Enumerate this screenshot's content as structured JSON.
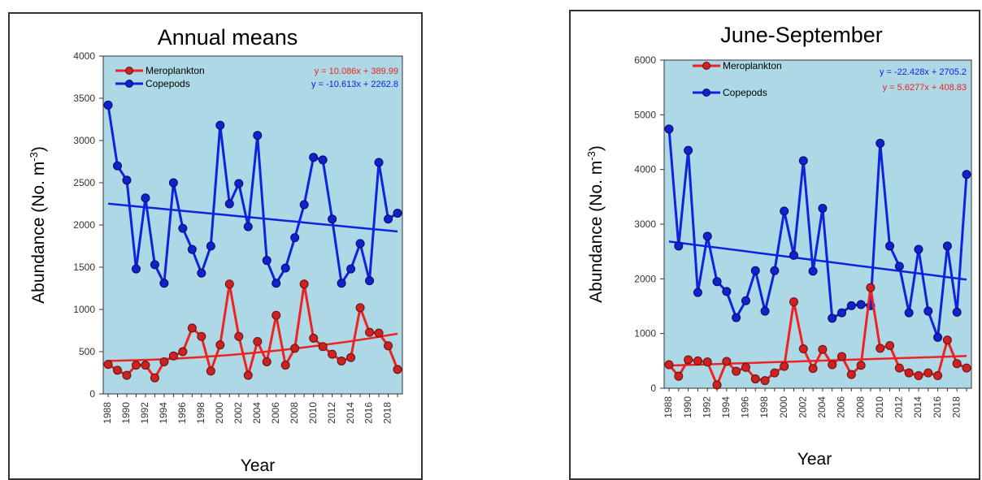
{
  "chart_data": [
    {
      "type": "line",
      "title": "Annual means",
      "xlabel": "Year",
      "ylabel": "Abundance (No. m-3)",
      "ylabel_main": "Abundance (No. m",
      "ylabel_sup": "-3",
      "ylabel_close": ")",
      "xlim": [
        1988,
        2019
      ],
      "ylim": [
        0,
        4000
      ],
      "yticks": [
        0,
        500,
        1000,
        1500,
        2000,
        2500,
        3000,
        3500,
        4000
      ],
      "xticks": [
        1988,
        1990,
        1992,
        1994,
        1996,
        1998,
        2000,
        2002,
        2004,
        2006,
        2008,
        2010,
        2012,
        2014,
        2016,
        2018
      ],
      "x": [
        1988,
        1989,
        1990,
        1991,
        1992,
        1993,
        1994,
        1995,
        1996,
        1997,
        1998,
        1999,
        2000,
        2001,
        2002,
        2003,
        2004,
        2005,
        2006,
        2007,
        2008,
        2009,
        2010,
        2011,
        2012,
        2013,
        2014,
        2015,
        2016,
        2017,
        2018,
        2019
      ],
      "legend": "top-left",
      "grid": false,
      "background": "#add8e6",
      "series": [
        {
          "name": "Meroplankton",
          "color": "#ee2222",
          "values": [
            350,
            280,
            220,
            340,
            340,
            190,
            380,
            450,
            500,
            780,
            680,
            270,
            580,
            1300,
            680,
            220,
            620,
            380,
            930,
            340,
            540,
            1300,
            660,
            560,
            470,
            390,
            430,
            1020,
            730,
            720,
            570,
            290
          ],
          "trend_label": "y = 10.086x + 389.99",
          "trend": {
            "slope": 10.086,
            "intercept": 389.99,
            "curve": 0.28
          }
        },
        {
          "name": "Copepods",
          "color": "#1122dd",
          "values": [
            3420,
            2700,
            2530,
            1480,
            2320,
            1530,
            1310,
            2500,
            1960,
            1710,
            1430,
            1750,
            3180,
            2250,
            2490,
            1980,
            3060,
            1580,
            1310,
            1490,
            1850,
            2240,
            2800,
            2770,
            2070,
            1310,
            1480,
            1780,
            1340,
            2740,
            2070,
            2140
          ],
          "trend_label": "y = -10.613x + 2262.8",
          "trend": {
            "slope": -10.613,
            "intercept": 2262.8,
            "curve": 0
          }
        }
      ]
    },
    {
      "type": "line",
      "title": "June-September",
      "xlabel": "Year",
      "ylabel": "Abundance (No. m-3)",
      "ylabel_main": "Abundance (No. m",
      "ylabel_sup": "-3",
      "ylabel_close": ")",
      "xlim": [
        1988,
        2019
      ],
      "ylim": [
        0,
        6000
      ],
      "yticks": [
        0,
        1000,
        2000,
        3000,
        4000,
        5000,
        6000
      ],
      "xticks": [
        1988,
        1990,
        1992,
        1994,
        1996,
        1998,
        2000,
        2002,
        2004,
        2006,
        2008,
        2010,
        2012,
        2014,
        2016,
        2018
      ],
      "x": [
        1988,
        1989,
        1990,
        1991,
        1992,
        1993,
        1994,
        1995,
        1996,
        1997,
        1998,
        1999,
        2000,
        2001,
        2002,
        2003,
        2004,
        2005,
        2006,
        2007,
        2008,
        2009,
        2010,
        2011,
        2012,
        2013,
        2014,
        2015,
        2016,
        2017,
        2018,
        2019
      ],
      "legend": "top-left",
      "grid": false,
      "background": "#add8e6",
      "series": [
        {
          "name": "Meroplankton",
          "color": "#ee2222",
          "values": [
            430,
            220,
            520,
            500,
            480,
            60,
            490,
            310,
            380,
            170,
            140,
            280,
            400,
            1580,
            720,
            360,
            710,
            430,
            580,
            250,
            420,
            1840,
            730,
            780,
            370,
            280,
            230,
            280,
            230,
            880,
            450,
            370
          ],
          "trend_label": "y = 5.6277x + 408.83",
          "trend": {
            "slope": 5.6277,
            "intercept": 408.83,
            "curve": 0
          }
        },
        {
          "name": "Copepods",
          "color": "#1122dd",
          "values": [
            4740,
            2600,
            4350,
            1750,
            2780,
            1950,
            1770,
            1290,
            1600,
            2150,
            1410,
            2150,
            3240,
            2430,
            4160,
            2140,
            3290,
            1280,
            1380,
            1510,
            1530,
            1510,
            4480,
            2600,
            2230,
            1380,
            2540,
            1410,
            930,
            2600,
            1390,
            3910
          ],
          "trend_label": "y = -22.428x + 2705.2",
          "trend": {
            "slope": -22.428,
            "intercept": 2705.2,
            "curve": 0
          }
        }
      ]
    }
  ]
}
